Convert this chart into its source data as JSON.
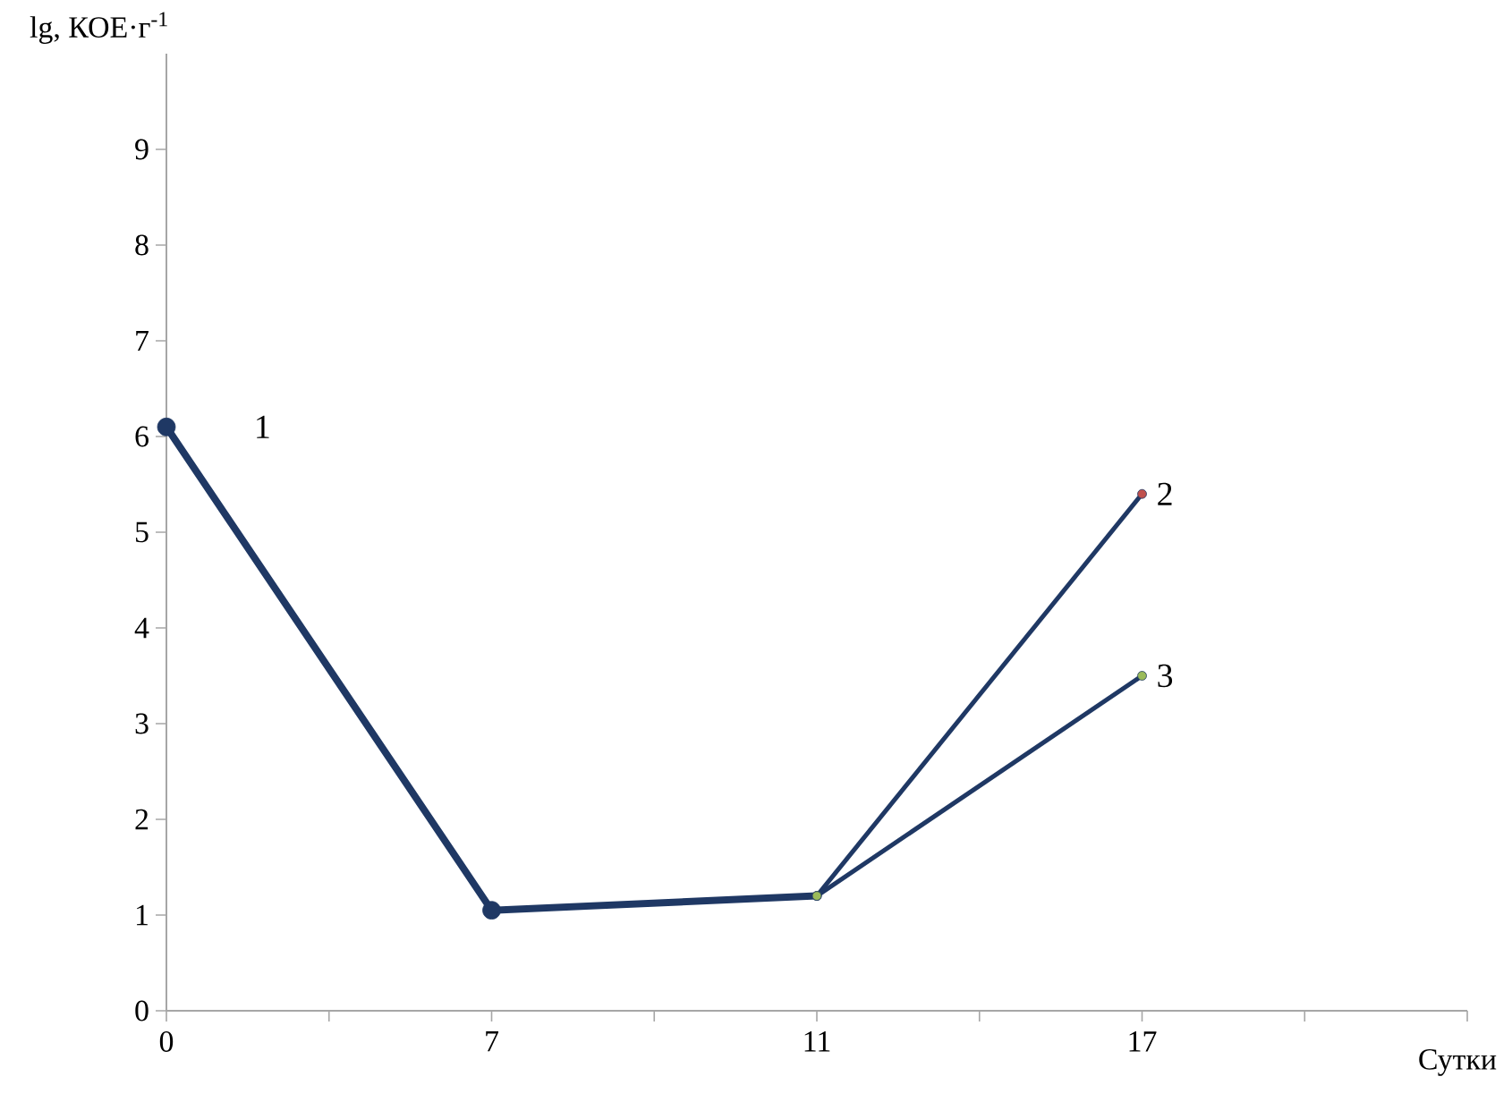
{
  "chart_data": {
    "type": "line",
    "ylabel": "lg, КОЕ·г$^{-1}$",
    "xlabel": "Сутки",
    "categories": [
      "0",
      null,
      "7",
      null,
      "11",
      null,
      "17",
      null,
      null
    ],
    "ylim": [
      0,
      10
    ],
    "yticks": [
      0,
      1,
      2,
      3,
      4,
      5,
      6,
      7,
      8,
      9
    ],
    "grid": false,
    "marker": "circle",
    "line_style": "solid",
    "series": [
      {
        "name": "1",
        "color": "#1f3864",
        "values": [
          6.1,
          null,
          1.05,
          null,
          1.2,
          null,
          null,
          null,
          null
        ],
        "colors": [
          "#1f3864",
          null,
          "#1f3864",
          null,
          "#9bbb59",
          null,
          null,
          null,
          null
        ]
      },
      {
        "name": "2",
        "color": "#1f3864",
        "values": [
          null,
          null,
          null,
          null,
          1.2,
          null,
          5.4,
          null,
          null
        ],
        "colors": [
          null,
          null,
          null,
          null,
          "#9bbb59",
          null,
          "#c0504d",
          null,
          null
        ]
      },
      {
        "name": "3",
        "color": "#1f3864",
        "values": [
          null,
          null,
          null,
          null,
          1.2,
          null,
          3.5,
          null,
          null
        ],
        "colors": [
          null,
          null,
          null,
          null,
          "#9bbb59",
          null,
          "#9bbb59",
          null,
          null
        ]
      }
    ]
  }
}
